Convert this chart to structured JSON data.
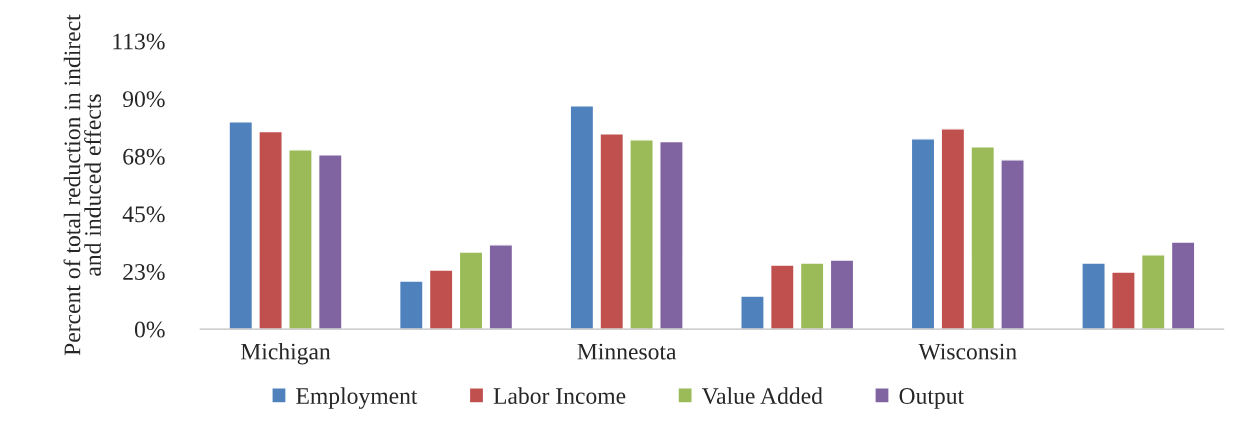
{
  "chart_data": {
    "type": "bar",
    "ylabel": "Percent of total reduction in indirect and induced effects",
    "categories": [
      "Michigan",
      null,
      "Minnesota",
      null,
      "Wisconsin",
      null
    ],
    "series": [
      {
        "name": "Employment",
        "color": "#4f81bd",
        "values": [
          81.0,
          18.8,
          87.2,
          12.9,
          74.3,
          25.8
        ]
      },
      {
        "name": "Labor Income",
        "color": "#c0504d",
        "values": [
          77.1,
          23.1,
          76.3,
          25.0,
          78.2,
          22.3
        ]
      },
      {
        "name": "Value Added",
        "color": "#9bbb59",
        "values": [
          70.0,
          30.1,
          73.9,
          25.8,
          71.2,
          29.0
        ]
      },
      {
        "name": "Output",
        "color": "#8064a2",
        "values": [
          68.1,
          32.9,
          73.2,
          27.0,
          66.1,
          34.0
        ]
      }
    ],
    "ylim": [
      0,
      112.5
    ],
    "yticks": [
      {
        "value": 0,
        "label": "0%"
      },
      {
        "value": 22.5,
        "label": "23%"
      },
      {
        "value": 45,
        "label": "45%"
      },
      {
        "value": 67.5,
        "label": "68%"
      },
      {
        "value": 90,
        "label": "90%"
      },
      {
        "value": 112.5,
        "label": "113%"
      }
    ],
    "grid": false,
    "legend": "bottom"
  }
}
